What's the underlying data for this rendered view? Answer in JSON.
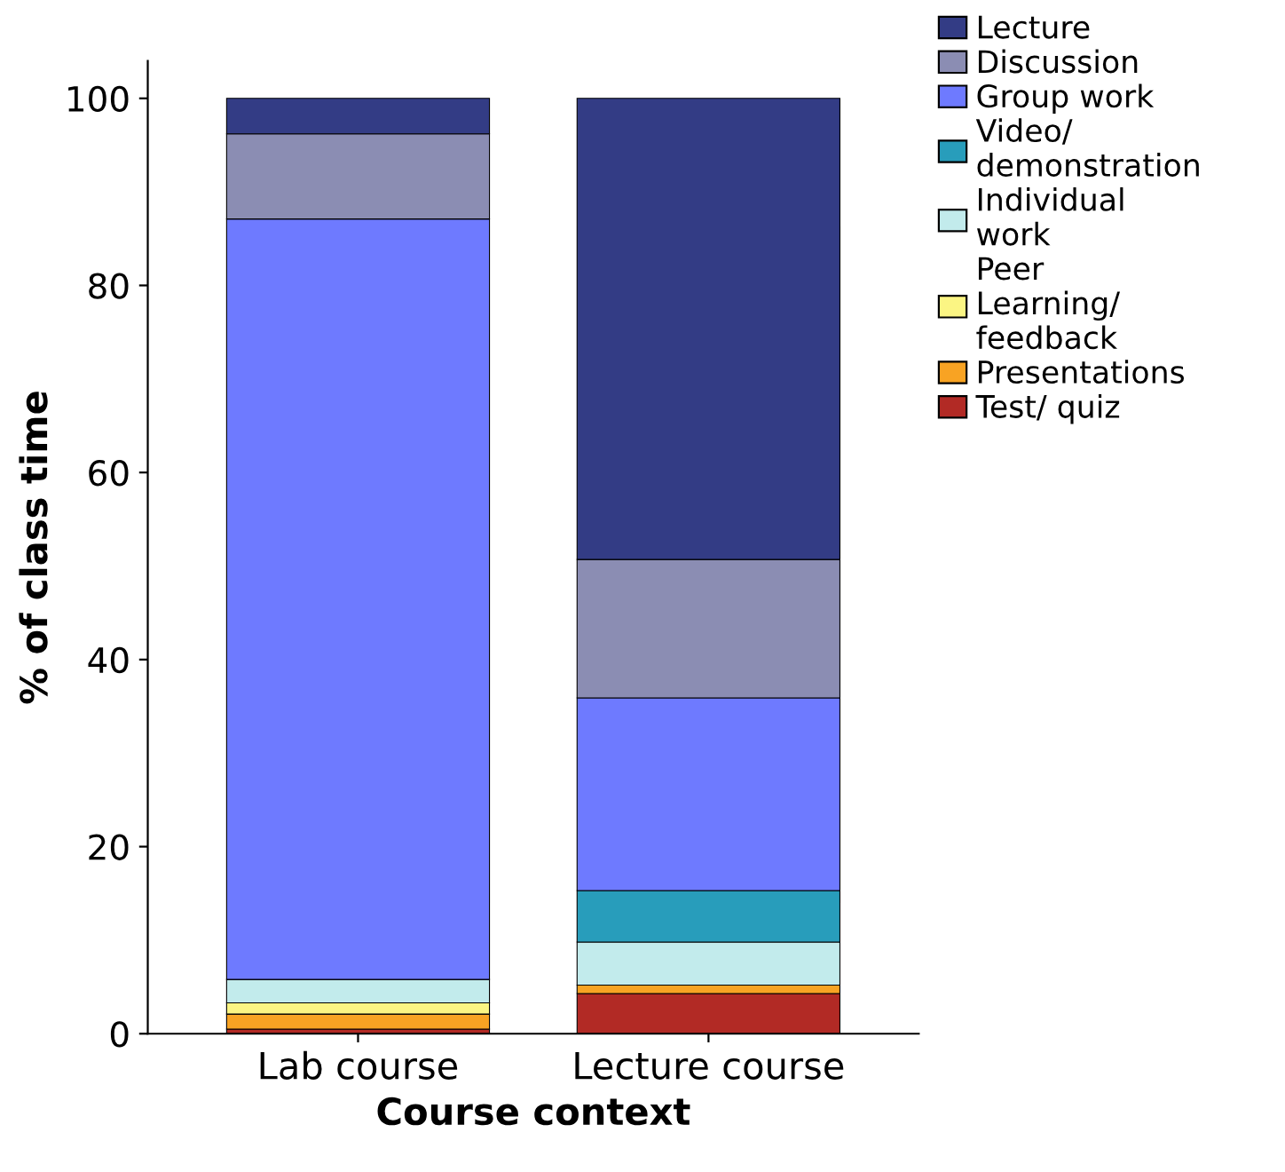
{
  "chart_data": {
    "type": "bar",
    "stacked": true,
    "xlabel": "Course context",
    "ylabel": "% of class time",
    "categories": [
      "Lab course",
      "Lecture course"
    ],
    "ylim": [
      0,
      104
    ],
    "yticks": [
      0,
      20,
      40,
      60,
      80,
      100
    ],
    "grid": false,
    "legend": "right",
    "series": [
      {
        "name": "Test/ quiz",
        "color": "#b22a25",
        "values": [
          0.5,
          4.3
        ]
      },
      {
        "name": "Presentations",
        "color": "#f8a323",
        "values": [
          1.6,
          0.9
        ]
      },
      {
        "name": "Peer\nLearning/\nfeedback",
        "color": "#fbf583",
        "values": [
          1.2,
          0
        ]
      },
      {
        "name": "Individual\nwork",
        "color": "#c2ebec",
        "values": [
          2.5,
          4.6
        ]
      },
      {
        "name": "Video/\ndemonstration",
        "color": "#289dbb",
        "values": [
          0,
          5.5
        ]
      },
      {
        "name": "Group work",
        "color": "#6e7aff",
        "values": [
          81.3,
          20.6
        ]
      },
      {
        "name": "Discussion",
        "color": "#8b8db3",
        "values": [
          9.1,
          14.8
        ]
      },
      {
        "name": "Lecture",
        "color": "#333c85",
        "values": [
          3.8,
          49.3
        ]
      }
    ]
  }
}
